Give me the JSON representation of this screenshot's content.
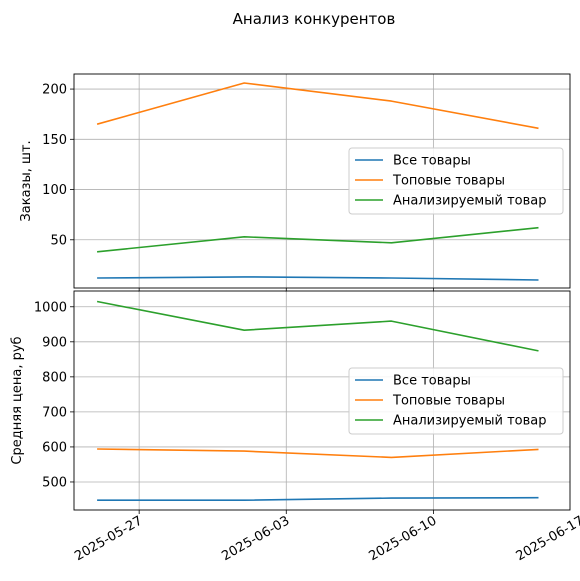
{
  "suptitle": "Анализ конкурентов",
  "chart_data": [
    {
      "type": "line",
      "ylabel": "Заказы, шт.",
      "ylim": [
        2,
        215
      ],
      "yticks": [
        50,
        100,
        150,
        200
      ],
      "grid": true,
      "legend_position": "center-right",
      "x": [
        "2025-05-25",
        "2025-06-01",
        "2025-06-08",
        "2025-06-15"
      ],
      "series": [
        {
          "name": "Все товары",
          "color": "#1f77b4",
          "values": [
            12,
            13,
            12,
            10
          ]
        },
        {
          "name": "Топовые товары",
          "color": "#ff7f0e",
          "values": [
            165,
            206,
            188,
            161
          ]
        },
        {
          "name": "Анализируемый товар",
          "color": "#2ca02c",
          "values": [
            38,
            53,
            47,
            62
          ]
        }
      ]
    },
    {
      "type": "line",
      "ylabel": "Средняя цена, руб",
      "ylim": [
        420,
        1045
      ],
      "yticks": [
        500,
        600,
        700,
        800,
        900,
        1000
      ],
      "grid": true,
      "legend_position": "center-right",
      "x": [
        "2025-05-25",
        "2025-06-01",
        "2025-06-08",
        "2025-06-15"
      ],
      "xticks": [
        "2025-05-27",
        "2025-06-03",
        "2025-06-10",
        "2025-06-17"
      ],
      "series": [
        {
          "name": "Все товары",
          "color": "#1f77b4",
          "values": [
            448,
            448,
            454,
            455
          ]
        },
        {
          "name": "Топовые товары",
          "color": "#ff7f0e",
          "values": [
            594,
            588,
            570,
            593
          ]
        },
        {
          "name": "Анализируемый товар",
          "color": "#2ca02c",
          "values": [
            1015,
            933,
            959,
            874
          ]
        }
      ]
    }
  ]
}
